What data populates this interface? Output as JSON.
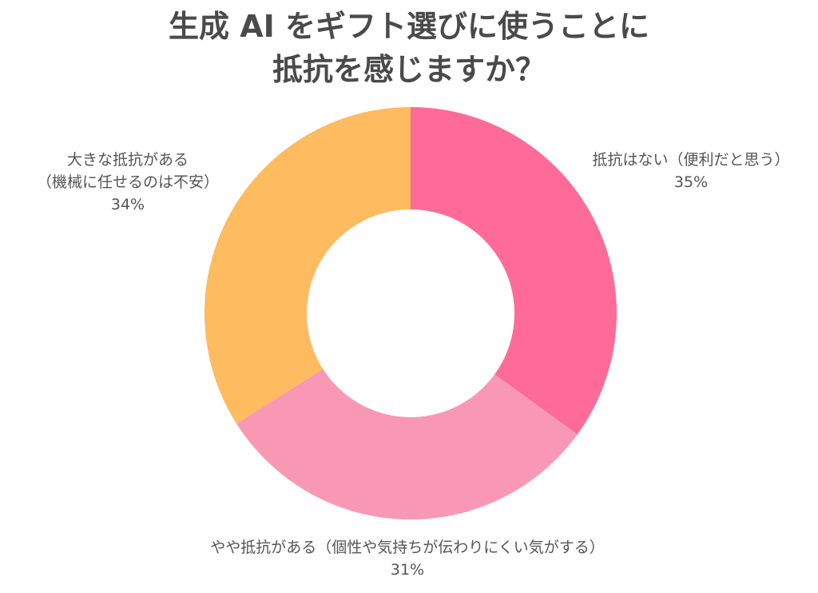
{
  "title": {
    "line1": "生成 AI をギフト選びに使うことに",
    "line2": "抵抗を感じますか？"
  },
  "chart_data": {
    "type": "pie",
    "donut": true,
    "title": "生成 AI をギフト選びに使うことに 抵抗を感じますか？",
    "slices": [
      {
        "label": "抵抗はない（便利だと思う）",
        "value": 35,
        "value_label": "35%",
        "color": "#ff6b98"
      },
      {
        "label": "やや抵抗がある（個性や気持ちが伝わりにくい気がする）",
        "value": 31,
        "value_label": "31%",
        "color": "#f898b5"
      },
      {
        "label": "大きな抵抗がある（機械に任せるのは不安）",
        "value": 34,
        "value_label": "34%",
        "color": "#febb5f"
      }
    ],
    "label_lines": {
      "slice_0": [
        "抵抗はない（便利だと思う）",
        "35%"
      ],
      "slice_1": [
        "やや抵抗がある（個性や気持ちが伝わりにくい気がする）",
        "31%"
      ],
      "slice_2": [
        "大きな抵抗がある",
        "（機械に任せるのは不安）",
        "34%"
      ]
    }
  }
}
